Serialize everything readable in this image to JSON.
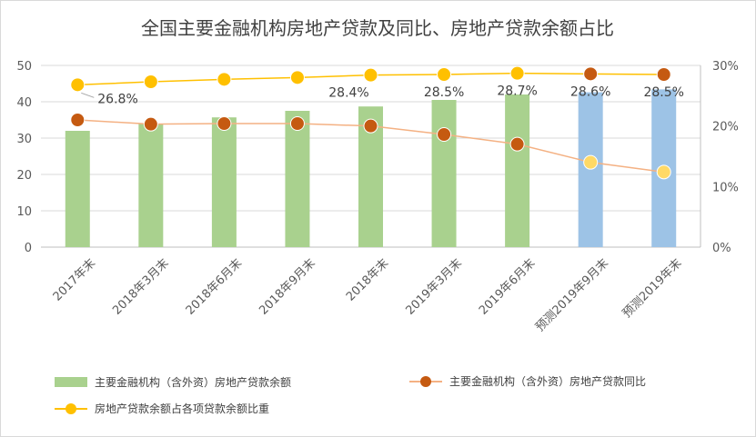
{
  "chart_data": {
    "type": "bar",
    "title": "全国主要金融机构房地产贷款及同比、房地产贷款余额占比",
    "categories": [
      "2017年末",
      "2018年3月末",
      "2018年6月末",
      "2018年9月末",
      "2018年末",
      "2019年3月末",
      "2019年6月末",
      "预测2019年9月末",
      "预测2019年末"
    ],
    "y_left": {
      "min": 0,
      "max": 50,
      "ticks": [
        "0",
        "10",
        "20",
        "30",
        "40",
        "50"
      ]
    },
    "y_right": {
      "min": 0,
      "max": 0.3,
      "ticks": [
        "0%",
        "10%",
        "20%",
        "30%"
      ]
    },
    "grid": true,
    "legend_position": "bottom",
    "series": [
      {
        "name": "主要金融机构（含外资）房地产贷款余额",
        "kind": "bar",
        "axis": "left",
        "values": [
          32,
          34,
          35.7,
          37.5,
          38.7,
          40.5,
          42,
          42.6,
          43.4
        ],
        "colors": [
          "#a9d18e",
          "#a9d18e",
          "#a9d18e",
          "#a9d18e",
          "#a9d18e",
          "#a9d18e",
          "#a9d18e",
          "#9dc3e6",
          "#9dc3e6"
        ]
      },
      {
        "name": "主要金融机构（含外资）房地产贷款同比",
        "kind": "line",
        "axis": "right",
        "values": [
          0.21,
          0.203,
          0.204,
          0.204,
          0.2,
          0.186,
          0.17,
          0.14,
          0.124
        ],
        "line_color": "#f4b183",
        "dot_colors": [
          "#c55a11",
          "#c55a11",
          "#c55a11",
          "#c55a11",
          "#c55a11",
          "#c55a11",
          "#c55a11",
          "#ffd966",
          "#ffd966"
        ]
      },
      {
        "name": "房地产贷款余额占各项贷款余额比重",
        "kind": "line",
        "axis": "right",
        "values": [
          0.268,
          0.273,
          0.277,
          0.28,
          0.284,
          0.285,
          0.287,
          0.286,
          0.285
        ],
        "line_color": "#ffc000",
        "dot_colors": [
          "#ffc000",
          "#ffc000",
          "#ffc000",
          "#ffc000",
          "#ffc000",
          "#ffc000",
          "#ffc000",
          "#c55a11",
          "#c55a11"
        ],
        "data_labels": [
          "26.8%",
          "",
          "",
          "",
          "28.4%",
          "28.5%",
          "28.7%",
          "28.6%",
          "28.5%"
        ]
      }
    ]
  }
}
